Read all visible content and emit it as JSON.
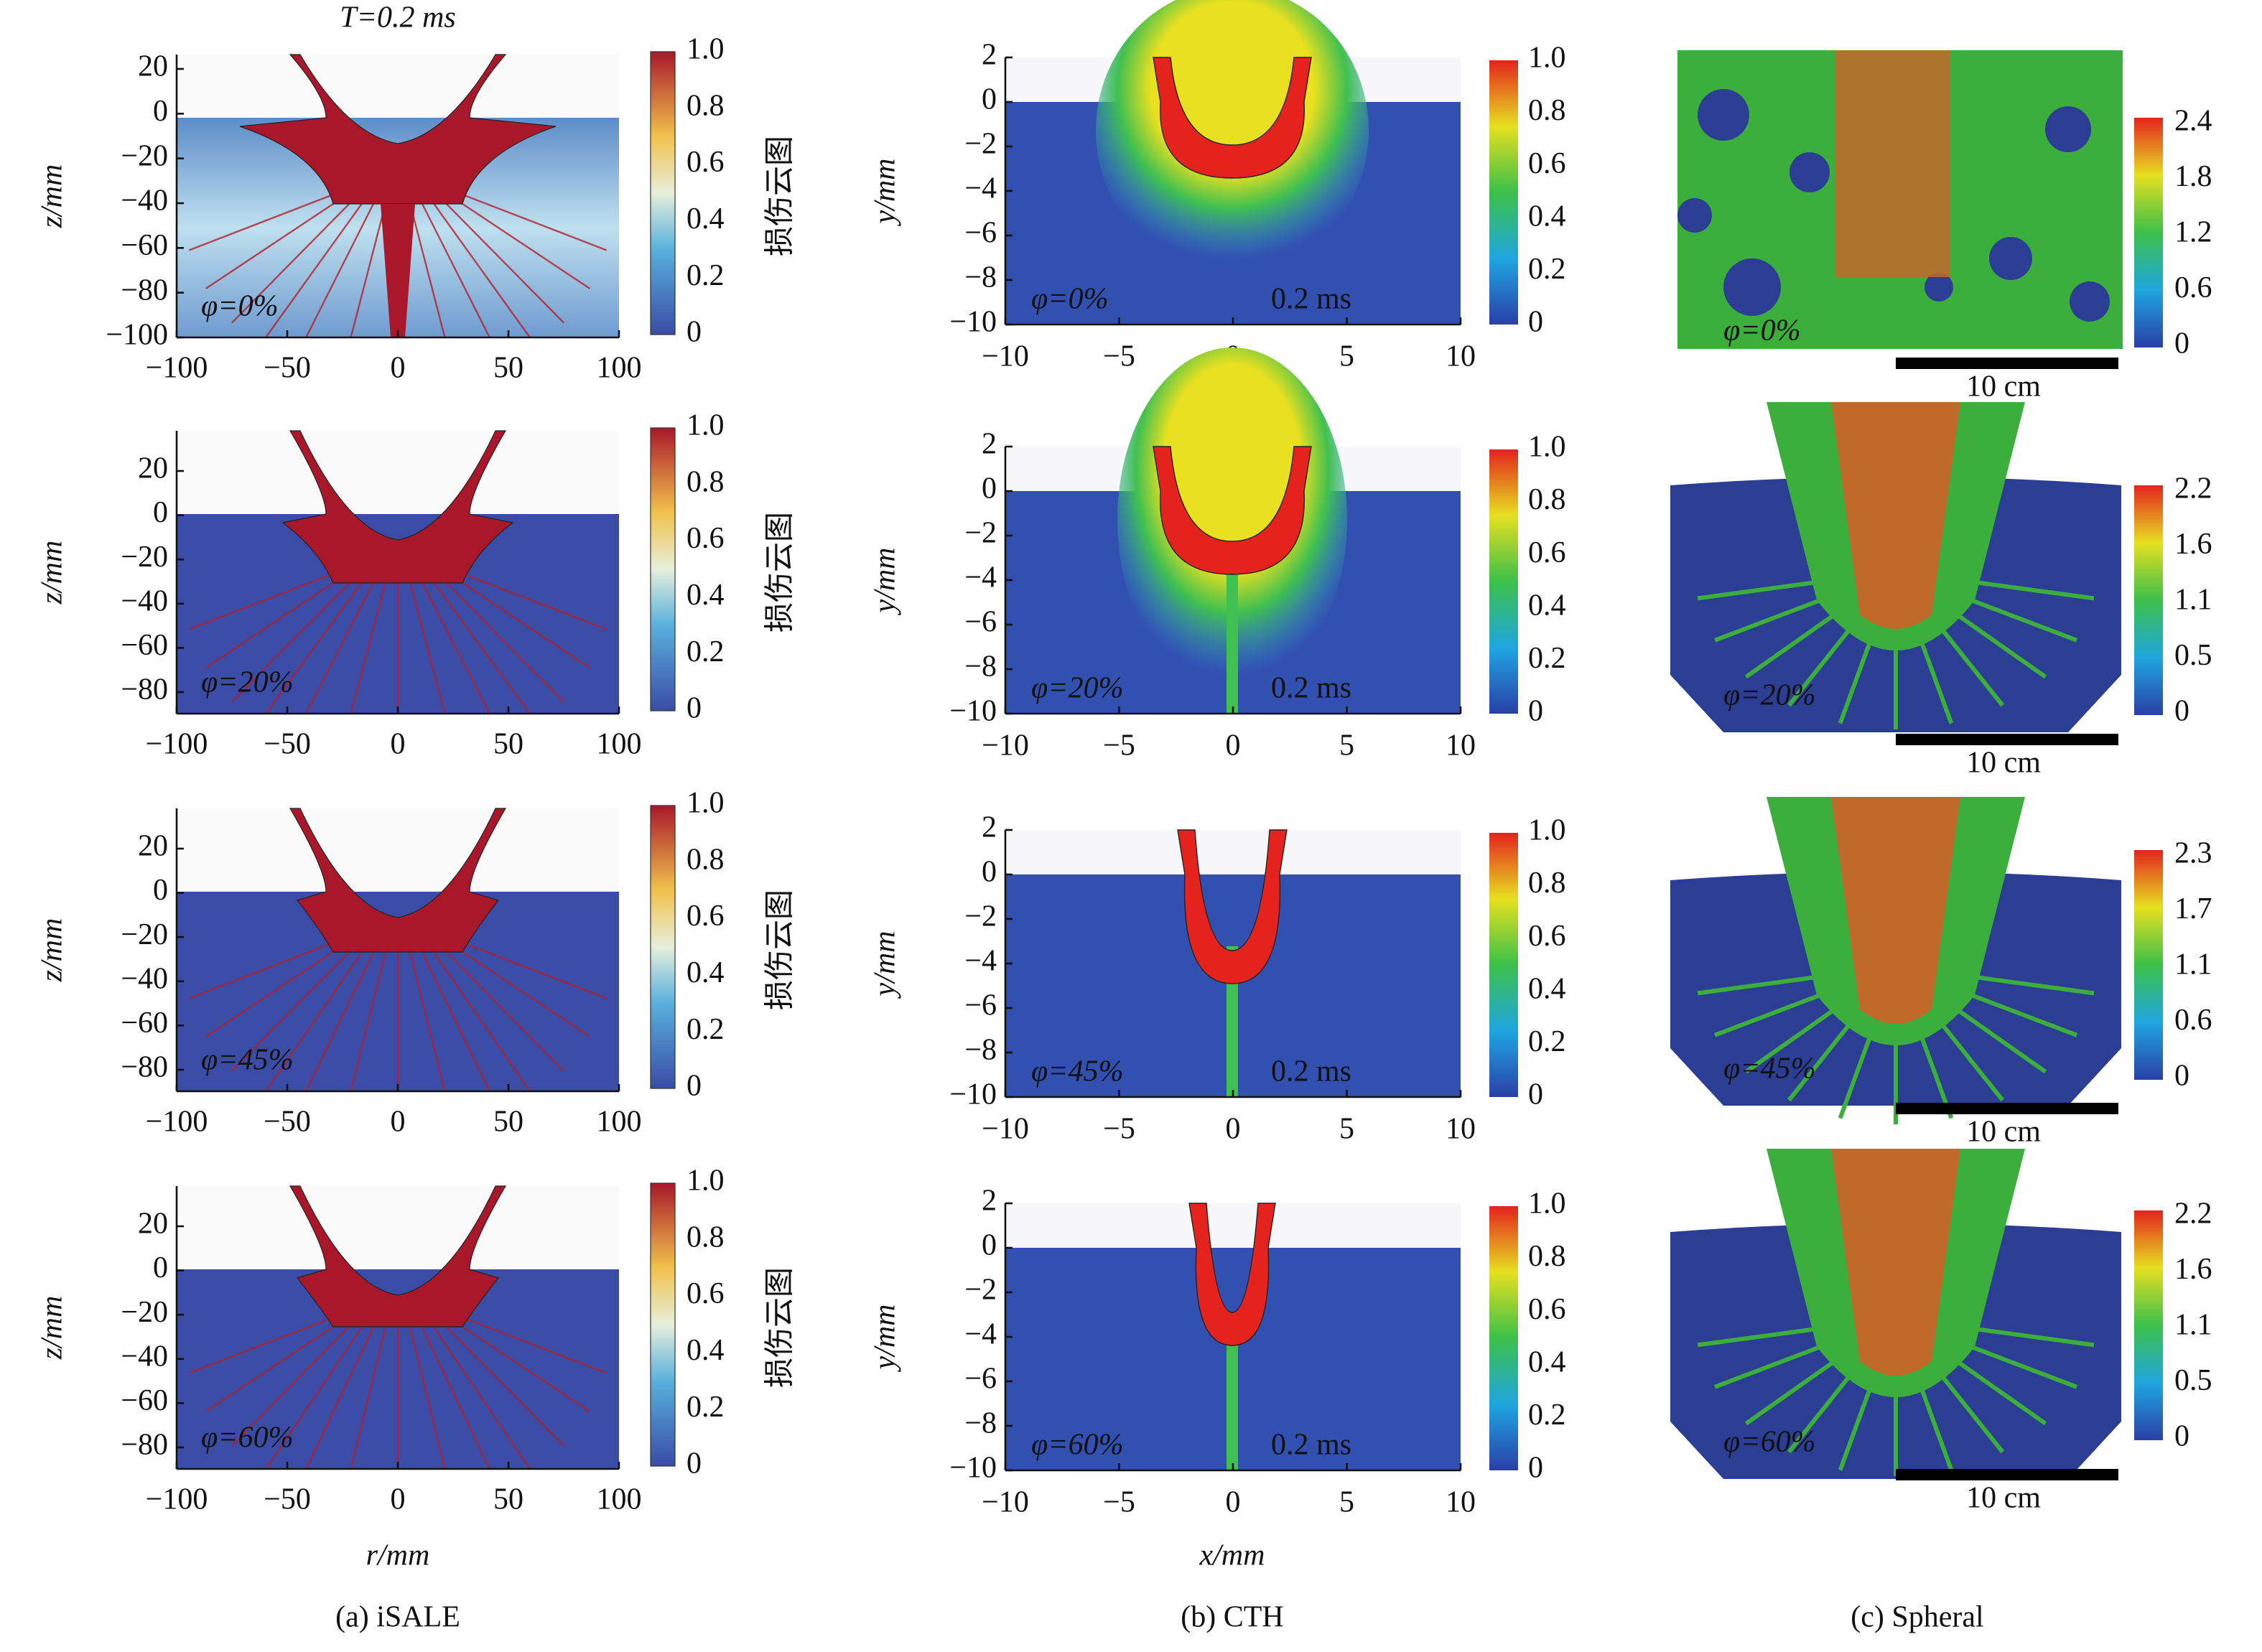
{
  "title": "T=0.2 ms",
  "columns": [
    {
      "caption": "(a) iSALE",
      "xlabel": "r/mm",
      "ylabel": "z/mm",
      "colorbar_label": "损伤云图",
      "xticks": [
        "−100",
        "−50",
        "0",
        "50",
        "100"
      ],
      "colorbar_ticks": [
        "1.0",
        "0.8",
        "0.6",
        "0.4",
        "0.2",
        "0"
      ],
      "panels": [
        {
          "label": "φ=0%",
          "yticks": [
            "20",
            "0",
            "−20",
            "−40",
            "−60",
            "−80",
            "−100"
          ]
        },
        {
          "label": "φ=20%",
          "yticks": [
            "20",
            "0",
            "−20",
            "−40",
            "−60",
            "−80"
          ]
        },
        {
          "label": "φ=45%",
          "yticks": [
            "20",
            "0",
            "−20",
            "−40",
            "−60",
            "−80"
          ]
        },
        {
          "label": "φ=60%",
          "yticks": [
            "20",
            "0",
            "−20",
            "−40",
            "−60",
            "−80"
          ]
        }
      ]
    },
    {
      "caption": "(b) CTH",
      "xlabel": "x/mm",
      "ylabel": "y/mm",
      "xticks": [
        "−10",
        "−5",
        "0",
        "5",
        "10"
      ],
      "yticks": [
        "2",
        "0",
        "−2",
        "−4",
        "−6",
        "−8",
        "−10"
      ],
      "colorbar_ticks": [
        "1.0",
        "0.8",
        "0.6",
        "0.4",
        "0.2",
        "0"
      ],
      "panels": [
        {
          "label": "φ=0%",
          "time": "0.2 ms"
        },
        {
          "label": "φ=20%",
          "time": "0.2 ms"
        },
        {
          "label": "φ=45%",
          "time": "0.2 ms"
        },
        {
          "label": "φ=60%",
          "time": "0.2 ms"
        }
      ]
    },
    {
      "caption": "(c) Spheral",
      "panels": [
        {
          "label": "φ=0%",
          "scale_bar": "10 cm",
          "colorbar_ticks": [
            "2.4",
            "1.8",
            "1.2",
            "0.6",
            "0"
          ]
        },
        {
          "label": "φ=20%",
          "scale_bar": "10 cm",
          "colorbar_ticks": [
            "2.2",
            "1.6",
            "1.1",
            "0.5",
            "0"
          ]
        },
        {
          "label": "φ=45%",
          "scale_bar": "10 cm",
          "colorbar_ticks": [
            "2.3",
            "1.7",
            "1.1",
            "0.6",
            "0"
          ]
        },
        {
          "label": "φ=60%",
          "scale_bar": "10 cm",
          "colorbar_ticks": [
            "2.2",
            "1.6",
            "1.1",
            "0.5",
            "0"
          ]
        }
      ]
    }
  ]
}
